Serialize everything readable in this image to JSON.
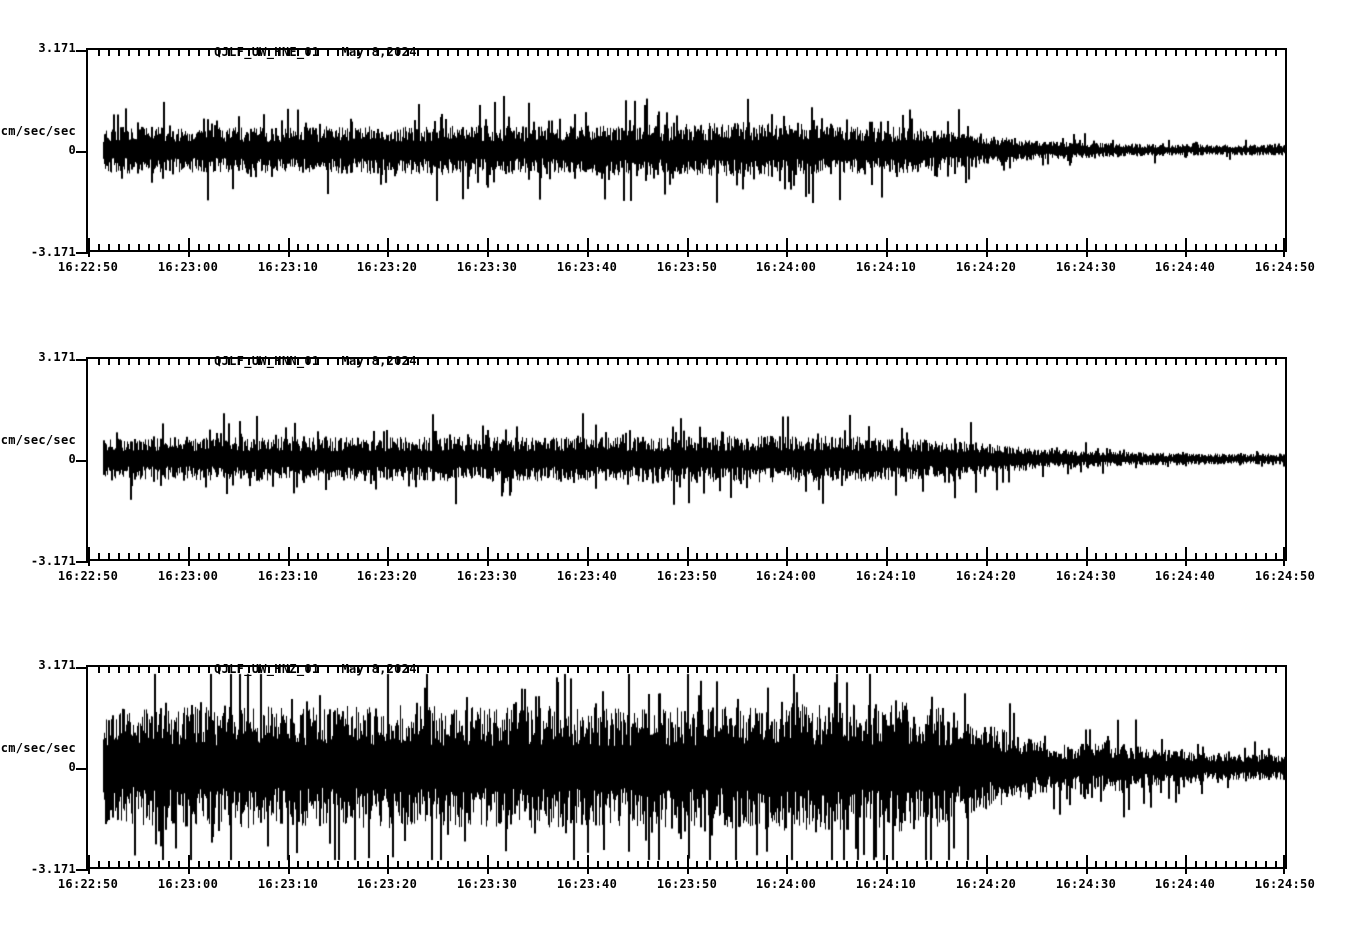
{
  "page": {
    "background": "#ffffff",
    "trace_color": "#000000",
    "date": "May 8,2024",
    "units_label": "cm/sec/sec"
  },
  "chart_data": [
    {
      "type": "line",
      "kind": "seismogram-trace",
      "station": "QJLF_UW_HNE_01",
      "date": "May 8,2024",
      "units_label": "cm/sec/sec",
      "y_axis": {
        "tick_labels": [
          "3.171",
          "0",
          "-3.171"
        ],
        "ylim": [
          -3.171,
          3.171
        ]
      },
      "x_axis": {
        "start": "16:22:50",
        "end": "16:24:50",
        "duration_sec": 120,
        "major_interval_sec": 10,
        "minor_interval_sec": 1,
        "tick_labels": [
          "16:22:50",
          "16:23:00",
          "16:23:10",
          "16:23:20",
          "16:23:30",
          "16:23:40",
          "16:23:50",
          "16:24:00",
          "16:24:10",
          "16:24:20",
          "16:24:30",
          "16:24:40",
          "16:24:50"
        ]
      },
      "waveform": {
        "start_offset_sec": 1.5,
        "envelope": [
          [
            1.5,
            0.5
          ],
          [
            5,
            0.52
          ],
          [
            15,
            0.5
          ],
          [
            25,
            0.52
          ],
          [
            35,
            0.55
          ],
          [
            45,
            0.52
          ],
          [
            55,
            0.56
          ],
          [
            62,
            0.6
          ],
          [
            68,
            0.62
          ],
          [
            73,
            0.55
          ],
          [
            78,
            0.52
          ],
          [
            83,
            0.5
          ],
          [
            86,
            0.45
          ],
          [
            90,
            0.32
          ],
          [
            94,
            0.24
          ],
          [
            98,
            0.19
          ],
          [
            103,
            0.15
          ],
          [
            108,
            0.13
          ],
          [
            114,
            0.12
          ],
          [
            120,
            0.12
          ]
        ],
        "spike_gain": 1.2,
        "spike_prob": 0.09,
        "clamp": 1.75,
        "seed": 7
      }
    },
    {
      "type": "line",
      "kind": "seismogram-trace",
      "station": "QJLF_UW_HNN_01",
      "date": "May 8,2024",
      "units_label": "cm/sec/sec",
      "y_axis": {
        "tick_labels": [
          "3.171",
          "0",
          "-3.171"
        ],
        "ylim": [
          -3.171,
          3.171
        ]
      },
      "x_axis": {
        "start": "16:22:50",
        "end": "16:24:50",
        "duration_sec": 120,
        "major_interval_sec": 10,
        "minor_interval_sec": 1,
        "tick_labels": [
          "16:22:50",
          "16:23:00",
          "16:23:10",
          "16:23:20",
          "16:23:30",
          "16:23:40",
          "16:23:50",
          "16:24:00",
          "16:24:10",
          "16:24:20",
          "16:24:30",
          "16:24:40",
          "16:24:50"
        ]
      },
      "waveform": {
        "start_offset_sec": 1.5,
        "envelope": [
          [
            1.5,
            0.45
          ],
          [
            10,
            0.47
          ],
          [
            20,
            0.5
          ],
          [
            30,
            0.48
          ],
          [
            40,
            0.5
          ],
          [
            50,
            0.48
          ],
          [
            60,
            0.5
          ],
          [
            70,
            0.52
          ],
          [
            78,
            0.5
          ],
          [
            84,
            0.45
          ],
          [
            88,
            0.4
          ],
          [
            92,
            0.3
          ],
          [
            96,
            0.22
          ],
          [
            100,
            0.18
          ],
          [
            105,
            0.15
          ],
          [
            110,
            0.13
          ],
          [
            115,
            0.12
          ],
          [
            120,
            0.12
          ]
        ],
        "spike_gain": 1.1,
        "spike_prob": 0.09,
        "clamp": 1.45,
        "seed": 13
      }
    },
    {
      "type": "line",
      "kind": "seismogram-trace",
      "station": "QJLF_UW_HNZ_01",
      "date": "May 8,2024",
      "units_label": "cm/sec/sec",
      "y_axis": {
        "tick_labels": [
          "3.171",
          "0",
          "-3.171"
        ],
        "ylim": [
          -3.171,
          3.171
        ]
      },
      "x_axis": {
        "start": "16:22:50",
        "end": "16:24:50",
        "duration_sec": 120,
        "major_interval_sec": 10,
        "minor_interval_sec": 1,
        "tick_labels": [
          "16:22:50",
          "16:23:00",
          "16:23:10",
          "16:23:20",
          "16:23:30",
          "16:23:40",
          "16:23:50",
          "16:24:00",
          "16:24:10",
          "16:24:20",
          "16:24:30",
          "16:24:40",
          "16:24:50"
        ]
      },
      "waveform": {
        "start_offset_sec": 1.5,
        "envelope": [
          [
            1.5,
            1.25
          ],
          [
            8,
            1.3
          ],
          [
            15,
            1.35
          ],
          [
            22,
            1.3
          ],
          [
            30,
            1.38
          ],
          [
            38,
            1.32
          ],
          [
            45,
            1.35
          ],
          [
            52,
            1.28
          ],
          [
            58,
            1.32
          ],
          [
            65,
            1.35
          ],
          [
            70,
            1.42
          ],
          [
            76,
            1.38
          ],
          [
            82,
            1.45
          ],
          [
            86,
            1.3
          ],
          [
            90,
            0.95
          ],
          [
            94,
            0.65
          ],
          [
            98,
            0.5
          ],
          [
            101,
            0.52
          ],
          [
            103,
            0.58
          ],
          [
            105,
            0.48
          ],
          [
            108,
            0.38
          ],
          [
            112,
            0.32
          ],
          [
            116,
            0.29
          ],
          [
            120,
            0.28
          ]
        ],
        "spike_gain": 1.15,
        "spike_prob": 0.1,
        "clamp": 2.95,
        "seed": 29
      }
    }
  ]
}
